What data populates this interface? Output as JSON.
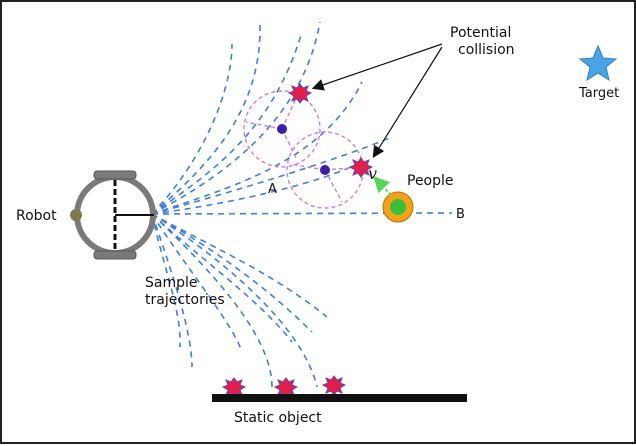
{
  "diagram": {
    "labels": {
      "robot": "Robot",
      "sample_trajectories_line1": "Sample",
      "sample_trajectories_line2": "trajectories",
      "potential_collision_line1": "Potential",
      "potential_collision_line2": "collision",
      "target": "Target",
      "people": "People",
      "velocity": "v",
      "point_a": "A",
      "point_b": "B",
      "static_object": "Static object"
    },
    "colors": {
      "trajectory": "#3f7fd9",
      "robot_body": "#7a7a7a",
      "robot_wheel_dot": "#7b7a4e",
      "collision_marker": "#e0204a",
      "collision_outline": "#6a3fb0",
      "person_outer": "#f3a21d",
      "person_inner": "#3bbf3a",
      "velocity_arrow": "#5cd35a",
      "sample_circle": "#c77de0",
      "sample_center": "#3a1ea8",
      "target_star": "#4aa3e6",
      "static_object": "#111111"
    },
    "icons": [
      "robot-icon",
      "target-star-icon",
      "person-icon",
      "collision-icon"
    ]
  }
}
